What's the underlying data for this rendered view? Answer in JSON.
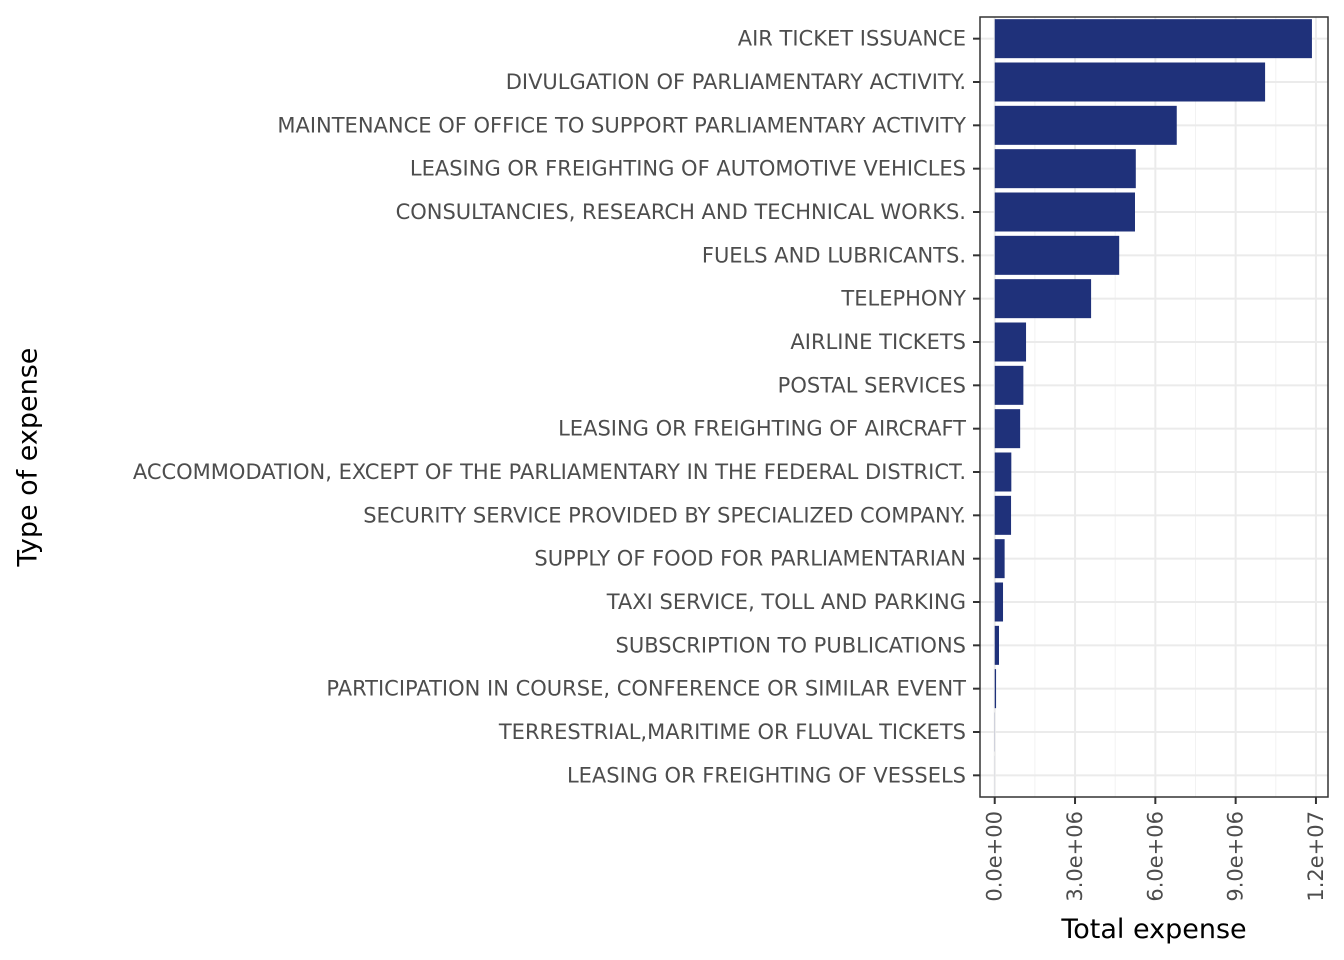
{
  "chart_data": {
    "type": "bar",
    "orientation": "horizontal",
    "categories": [
      "AIR TICKET ISSUANCE",
      "DIVULGATION OF PARLIAMENTARY ACTIVITY.",
      "MAINTENANCE OF OFFICE TO SUPPORT PARLIAMENTARY ACTIVITY",
      "LEASING OR FREIGHTING OF AUTOMOTIVE VEHICLES",
      "CONSULTANCIES, RESEARCH AND TECHNICAL WORKS.",
      "FUELS AND LUBRICANTS.",
      "TELEPHONY",
      "AIRLINE TICKETS",
      "POSTAL SERVICES",
      "LEASING OR FREIGHTING OF AIRCRAFT",
      "ACCOMMODATION, EXCEPT OF THE PARLIAMENTARY IN THE FEDERAL DISTRICT.",
      "SECURITY SERVICE PROVIDED BY SPECIALIZED COMPANY.",
      "SUPPLY OF FOOD FOR PARLIAMENTARIAN",
      "TAXI SERVICE, TOLL AND PARKING",
      "SUBSCRIPTION TO PUBLICATIONS",
      "PARTICIPATION IN COURSE, CONFERENCE OR SIMILAR EVENT",
      "TERRESTRIAL,MARITIME OR FLUVAL TICKETS",
      "LEASING OR FREIGHTING OF VESSELS"
    ],
    "values": [
      11850000,
      10100000,
      6800000,
      5270000,
      5240000,
      4650000,
      3600000,
      1170000,
      1070000,
      950000,
      620000,
      610000,
      370000,
      310000,
      160000,
      50000,
      5000,
      2000
    ],
    "xlabel": "Total expense",
    "ylabel": "Type of expense",
    "xlim": [
      -550000,
      12450000
    ],
    "x_ticks": [
      0,
      3000000,
      6000000,
      9000000,
      12000000
    ],
    "x_tick_labels": [
      "0.0e+00",
      "3.0e+06",
      "6.0e+06",
      "9.0e+06",
      "1.2e+07"
    ],
    "grid": true,
    "bar_color": "#1f317a",
    "theme": "bw"
  }
}
